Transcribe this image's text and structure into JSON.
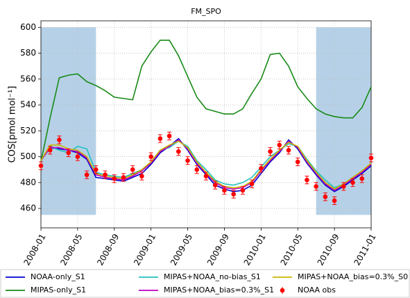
{
  "chart_data": {
    "type": "line",
    "title": "FM_SPO",
    "ylabel": "COS[pmol mol⁻¹]",
    "x": [
      "2008-01",
      "2008-02",
      "2008-03",
      "2008-04",
      "2008-05",
      "2008-06",
      "2008-07",
      "2008-08",
      "2008-09",
      "2008-10",
      "2008-11",
      "2008-12",
      "2009-01",
      "2009-02",
      "2009-03",
      "2009-04",
      "2009-05",
      "2009-06",
      "2009-07",
      "2009-08",
      "2009-09",
      "2009-10",
      "2009-11",
      "2009-12",
      "2010-01",
      "2010-02",
      "2010-03",
      "2010-04",
      "2010-05",
      "2010-06",
      "2010-07",
      "2010-08",
      "2010-09",
      "2010-10",
      "2010-11",
      "2010-12",
      "2011-01"
    ],
    "xlim": [
      "2008-01",
      "2011-01"
    ],
    "xticks": [
      "2008-01",
      "2008-05",
      "2008-09",
      "2009-01",
      "2009-05",
      "2009-09",
      "2010-01",
      "2010-05",
      "2010-09",
      "2011-01"
    ],
    "ylim": [
      445,
      605
    ],
    "yticks": [
      460,
      480,
      500,
      520,
      540,
      560,
      580,
      600
    ],
    "grid": true,
    "shaded_regions": [
      {
        "x": [
          "2008-01",
          "2008-07"
        ],
        "y": [
          455,
          600
        ]
      },
      {
        "x": [
          "2010-07",
          "2011-01"
        ],
        "y": [
          455,
          600
        ]
      }
    ],
    "shade_color": "#a9c9e3",
    "series": [
      {
        "name": "NOAA-only_S1",
        "color": "#0000cc",
        "values": [
          497,
          507,
          506,
          505,
          503,
          498,
          484,
          483,
          482,
          481,
          484,
          487,
          494,
          503,
          508,
          514,
          505,
          494,
          486,
          478,
          475,
          473,
          474,
          478,
          487,
          496,
          503,
          513,
          506,
          495,
          486,
          478,
          473,
          477,
          482,
          487,
          493
        ]
      },
      {
        "name": "MIPAS-only_S1",
        "color": "#178a17",
        "values": [
          496,
          530,
          561,
          563,
          564,
          558,
          555,
          551,
          546,
          545,
          544,
          570,
          581,
          590,
          590,
          578,
          562,
          546,
          537,
          535,
          533,
          533,
          537,
          549,
          560,
          579,
          580,
          570,
          554,
          545,
          537,
          533,
          531,
          530,
          530,
          538,
          554
        ]
      },
      {
        "name": "MIPAS+NOAA_no-bias_S1",
        "color": "#22bfbf",
        "values": [
          497,
          508,
          505,
          503,
          508,
          506,
          488,
          486,
          485,
          484,
          487,
          490,
          496,
          505,
          507,
          512,
          508,
          497,
          490,
          482,
          479,
          478,
          480,
          484,
          492,
          500,
          505,
          510,
          508,
          498,
          489,
          482,
          476,
          479,
          484,
          489,
          495
        ]
      },
      {
        "name": "MIPAS+NOAA_bias=0.3%_S1",
        "color": "#bf00bf",
        "values": [
          497,
          507,
          507,
          505,
          504,
          499,
          486,
          484,
          483,
          482,
          485,
          489,
          495,
          504,
          508,
          513,
          506,
          495,
          487,
          480,
          476,
          475,
          476,
          480,
          489,
          497,
          504,
          512,
          507,
          496,
          487,
          479,
          474,
          478,
          483,
          488,
          494
        ]
      },
      {
        "name": "MIPAS+NOAA_bias=0.3%_S0",
        "color": "#c8b400",
        "values": [
          497,
          509,
          509,
          506,
          505,
          500,
          487,
          485,
          484,
          483,
          486,
          490,
          496,
          505,
          509,
          512,
          507,
          496,
          488,
          481,
          477,
          476,
          477,
          481,
          490,
          498,
          505,
          511,
          508,
          497,
          488,
          480,
          475,
          479,
          484,
          489,
          495
        ]
      }
    ],
    "obs": {
      "name": "NOAA obs",
      "color": "#ff0000",
      "values": [
        493,
        505,
        513,
        503,
        500,
        486,
        490,
        486,
        483,
        484,
        490,
        485,
        500,
        514,
        516,
        504,
        497,
        490,
        485,
        478,
        474,
        471,
        474,
        479,
        491,
        504,
        509,
        505,
        496,
        482,
        477,
        469,
        466,
        477,
        480,
        483,
        499
      ],
      "errors": [
        3,
        3,
        3,
        3,
        3,
        3,
        3,
        3,
        3,
        3,
        3,
        3,
        3,
        3,
        3,
        3,
        3,
        3,
        3,
        3,
        3,
        3,
        3,
        3,
        3,
        3,
        3,
        3,
        3,
        3,
        3,
        3,
        3,
        3,
        3,
        3,
        3
      ]
    }
  }
}
